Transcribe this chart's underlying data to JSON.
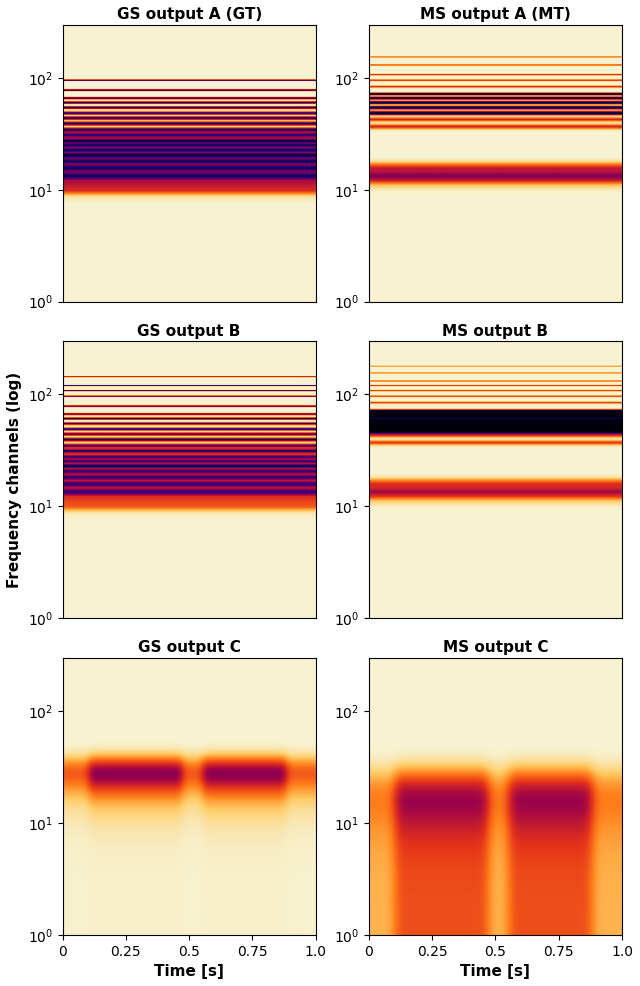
{
  "titles": [
    [
      "GS output A (GT)",
      "MS output A (MT)"
    ],
    [
      "GS output B",
      "MS output B"
    ],
    [
      "GS output C",
      "MS output C"
    ]
  ],
  "colormap": "afmhot_r",
  "fig_width": 6.4,
  "fig_height": 9.86,
  "xlabel": "Time [s]",
  "ylabel": "Frequency channels (log)",
  "t_min": 0.0,
  "t_max": 1.0,
  "f_min": 1.0,
  "f_max": 300.0,
  "xticks": [
    0,
    0.25,
    0.5,
    0.75,
    1.0
  ],
  "xtick_labels": [
    "0",
    "0.25",
    "0.5",
    "0.75",
    "1.0"
  ],
  "yticks": [
    1,
    10,
    100
  ],
  "ytick_labels": [
    "10$^0$",
    "10$^1$",
    "10$^2$"
  ],
  "background_color": "#f5f0d8"
}
